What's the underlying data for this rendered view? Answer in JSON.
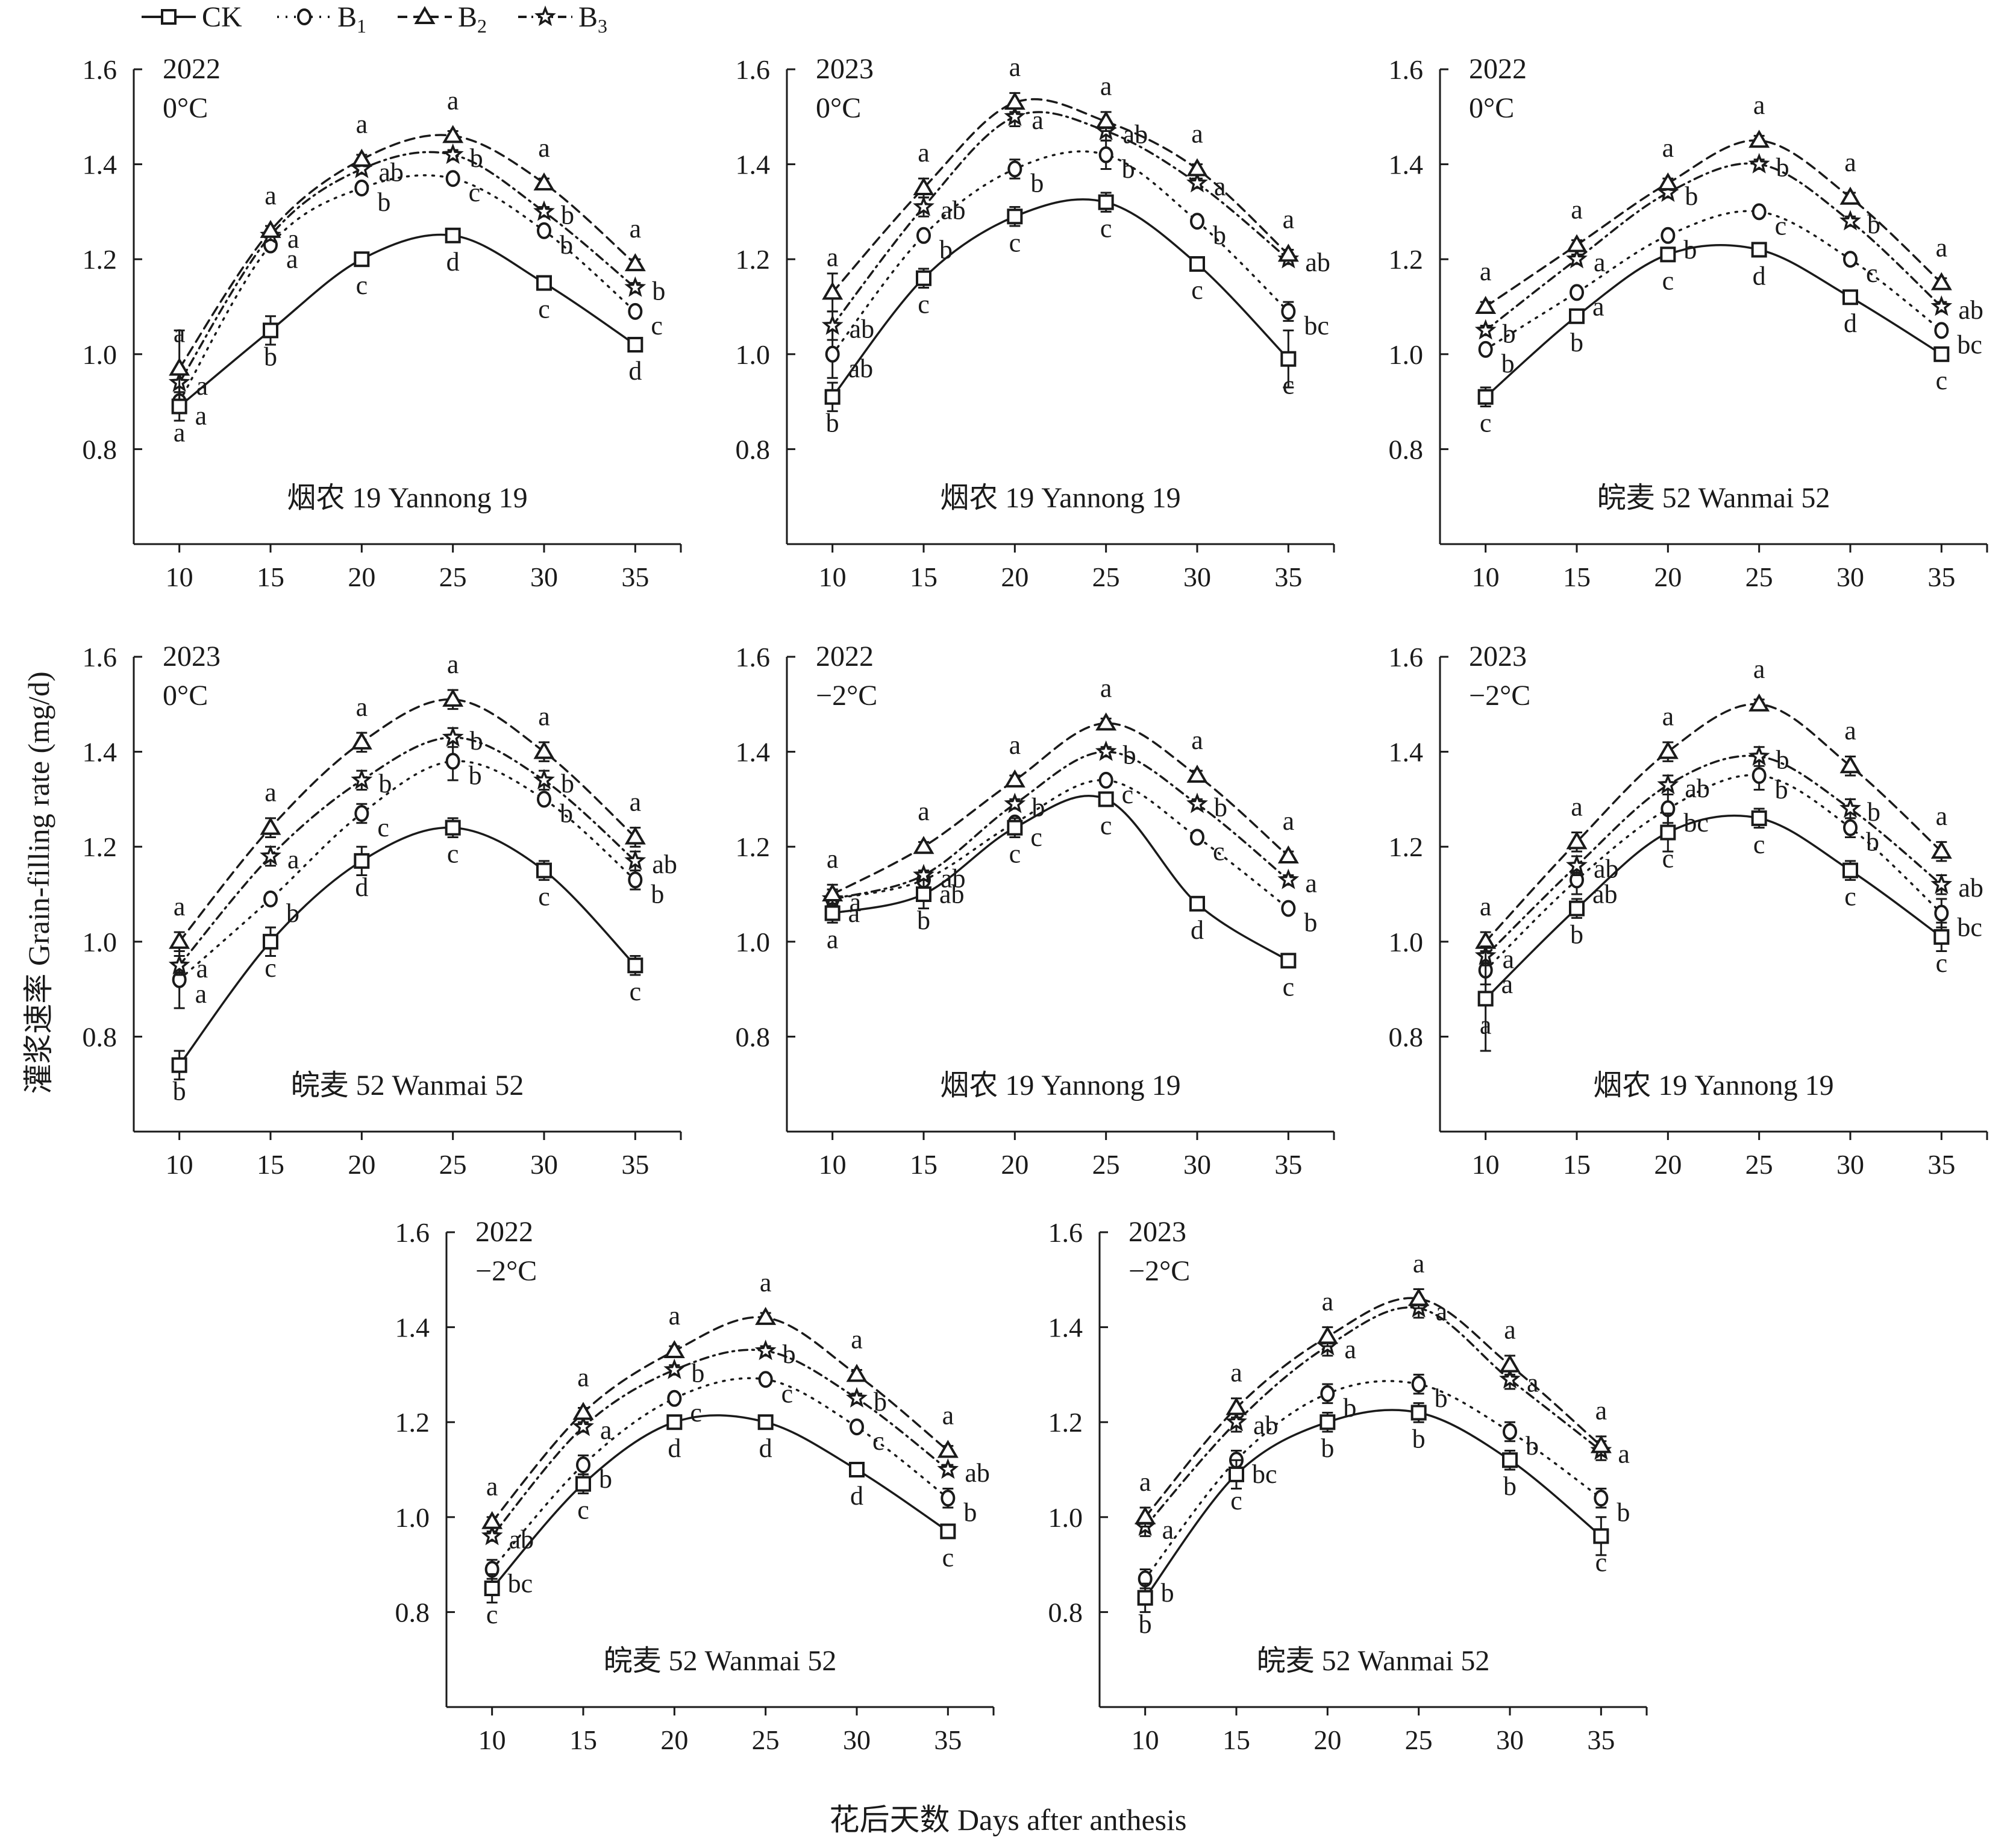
{
  "figure": {
    "ylabel": "灌浆速率 Grain-filling rate (mg/d)",
    "xlabel": "花后天数 Days after anthesis",
    "legend": [
      {
        "key": "CK",
        "label": "CK",
        "sub": "",
        "marker": "square",
        "dash": "solid"
      },
      {
        "key": "B1",
        "label": "B",
        "sub": "1",
        "marker": "circle",
        "dash": "dotted"
      },
      {
        "key": "B2",
        "label": "B",
        "sub": "2",
        "marker": "triangle",
        "dash": "dashed"
      },
      {
        "key": "B3",
        "label": "B",
        "sub": "3",
        "marker": "star",
        "dash": "dashdot"
      }
    ],
    "colors": {
      "ink": "#1a1a1a",
      "background": "#ffffff"
    }
  },
  "chart_data": [
    {
      "type": "line",
      "year": "2022",
      "temp": "0°C",
      "cultivar": "烟农 19 Yannong 19",
      "x": [
        10,
        15,
        20,
        25,
        30,
        35
      ],
      "ylim": [
        0.6,
        1.6
      ],
      "yticks": [
        "0.8",
        "1.0",
        "1.2",
        "1.4",
        "1.6"
      ],
      "xticks": [
        "10",
        "15",
        "20",
        "25",
        "30",
        "35"
      ],
      "series": [
        {
          "key": "CK",
          "values": [
            0.89,
            1.05,
            1.2,
            1.25,
            1.15,
            1.02
          ],
          "err": [
            0.03,
            0.03,
            0.01,
            0.01,
            0.01,
            0.01
          ],
          "letters": [
            "a",
            "b",
            "c",
            "d",
            "c",
            "d"
          ]
        },
        {
          "key": "B1",
          "values": [
            0.9,
            1.23,
            1.35,
            1.37,
            1.26,
            1.09
          ],
          "err": [
            0.02,
            0.01,
            0.01,
            0.01,
            0.01,
            0.01
          ],
          "letters": [
            "a",
            "a",
            "b",
            "c",
            "b",
            "c"
          ]
        },
        {
          "key": "B2",
          "values": [
            0.97,
            1.26,
            1.41,
            1.46,
            1.36,
            1.19
          ],
          "err": [
            0.08,
            0.01,
            0.01,
            0.01,
            0.01,
            0.01
          ],
          "letters": [
            "a",
            "a",
            "a",
            "a",
            "a",
            "a"
          ]
        },
        {
          "key": "B3",
          "values": [
            0.94,
            1.25,
            1.39,
            1.42,
            1.3,
            1.14
          ],
          "err": [
            0.02,
            0.01,
            0.01,
            0.01,
            0.01,
            0.01
          ],
          "letters": [
            "a",
            "a",
            "ab",
            "b",
            "b",
            "b"
          ]
        }
      ]
    },
    {
      "type": "line",
      "year": "2023",
      "temp": "0°C",
      "cultivar": "烟农 19 Yannong 19",
      "x": [
        10,
        15,
        20,
        25,
        30,
        35
      ],
      "ylim": [
        0.6,
        1.6
      ],
      "yticks": [
        "0.8",
        "1.0",
        "1.2",
        "1.4",
        "1.6"
      ],
      "xticks": [
        "10",
        "15",
        "20",
        "25",
        "30",
        "35"
      ],
      "series": [
        {
          "key": "CK",
          "values": [
            0.91,
            1.16,
            1.29,
            1.32,
            1.19,
            0.99
          ],
          "err": [
            0.03,
            0.02,
            0.02,
            0.02,
            0.01,
            0.06
          ],
          "letters": [
            "b",
            "c",
            "c",
            "c",
            "c",
            "c"
          ]
        },
        {
          "key": "B1",
          "values": [
            1.0,
            1.25,
            1.39,
            1.42,
            1.28,
            1.09
          ],
          "err": [
            0.05,
            0.01,
            0.02,
            0.03,
            0.01,
            0.02
          ],
          "letters": [
            "ab",
            "b",
            "b",
            "b",
            "b",
            "bc"
          ]
        },
        {
          "key": "B2",
          "values": [
            1.13,
            1.35,
            1.53,
            1.49,
            1.39,
            1.21
          ],
          "err": [
            0.04,
            0.02,
            0.02,
            0.02,
            0.01,
            0.01
          ],
          "letters": [
            "a",
            "a",
            "a",
            "a",
            "a",
            "a"
          ]
        },
        {
          "key": "B3",
          "values": [
            1.06,
            1.31,
            1.5,
            1.47,
            1.36,
            1.2
          ],
          "err": [
            0.03,
            0.02,
            0.02,
            0.02,
            0.01,
            0.01
          ],
          "letters": [
            "ab",
            "ab",
            "a",
            "ab",
            "a",
            "ab"
          ]
        }
      ]
    },
    {
      "type": "line",
      "year": "2022",
      "temp": "0°C",
      "cultivar": "皖麦 52 Wanmai 52",
      "x": [
        10,
        15,
        20,
        25,
        30,
        35
      ],
      "ylim": [
        0.6,
        1.6
      ],
      "yticks": [
        "0.8",
        "1.0",
        "1.2",
        "1.4",
        "1.6"
      ],
      "xticks": [
        "10",
        "15",
        "20",
        "25",
        "30",
        "35"
      ],
      "series": [
        {
          "key": "CK",
          "values": [
            0.91,
            1.08,
            1.21,
            1.22,
            1.12,
            1.0
          ],
          "err": [
            0.02,
            0.01,
            0.01,
            0.01,
            0.01,
            0.01
          ],
          "letters": [
            "c",
            "b",
            "c",
            "d",
            "d",
            "c"
          ]
        },
        {
          "key": "B1",
          "values": [
            1.01,
            1.13,
            1.25,
            1.3,
            1.2,
            1.05
          ],
          "err": [
            0.01,
            0.01,
            0.01,
            0.01,
            0.01,
            0.01
          ],
          "letters": [
            "b",
            "a",
            "b",
            "c",
            "c",
            "bc"
          ]
        },
        {
          "key": "B2",
          "values": [
            1.1,
            1.23,
            1.36,
            1.45,
            1.33,
            1.15
          ],
          "err": [
            0.01,
            0.01,
            0.01,
            0.01,
            0.01,
            0.01
          ],
          "letters": [
            "a",
            "a",
            "a",
            "a",
            "a",
            "a"
          ]
        },
        {
          "key": "B3",
          "values": [
            1.05,
            1.2,
            1.34,
            1.4,
            1.28,
            1.1
          ],
          "err": [
            0.01,
            0.01,
            0.01,
            0.01,
            0.01,
            0.01
          ],
          "letters": [
            "b",
            "a",
            "b",
            "b",
            "b",
            "ab"
          ]
        }
      ]
    },
    {
      "type": "line",
      "year": "2023",
      "temp": "0°C",
      "cultivar": "皖麦 52 Wanmai 52",
      "x": [
        10,
        15,
        20,
        25,
        30,
        35
      ],
      "ylim": [
        0.6,
        1.6
      ],
      "yticks": [
        "0.8",
        "1.0",
        "1.2",
        "1.4",
        "1.6"
      ],
      "xticks": [
        "10",
        "15",
        "20",
        "25",
        "30",
        "35"
      ],
      "series": [
        {
          "key": "CK",
          "values": [
            0.74,
            1.0,
            1.17,
            1.24,
            1.15,
            0.95
          ],
          "err": [
            0.03,
            0.03,
            0.03,
            0.02,
            0.02,
            0.02
          ],
          "letters": [
            "b",
            "c",
            "d",
            "c",
            "c",
            "c"
          ]
        },
        {
          "key": "B1",
          "values": [
            0.92,
            1.09,
            1.27,
            1.38,
            1.3,
            1.13
          ],
          "err": [
            0.06,
            0.01,
            0.02,
            0.04,
            0.01,
            0.02
          ],
          "letters": [
            "a",
            "b",
            "c",
            "b",
            "b",
            "b"
          ]
        },
        {
          "key": "B2",
          "values": [
            1.0,
            1.24,
            1.42,
            1.51,
            1.4,
            1.22
          ],
          "err": [
            0.02,
            0.02,
            0.02,
            0.02,
            0.02,
            0.02
          ],
          "letters": [
            "a",
            "a",
            "a",
            "a",
            "a",
            "a"
          ]
        },
        {
          "key": "B3",
          "values": [
            0.95,
            1.18,
            1.34,
            1.43,
            1.34,
            1.17
          ],
          "err": [
            0.02,
            0.02,
            0.02,
            0.02,
            0.02,
            0.02
          ],
          "letters": [
            "a",
            "a",
            "b",
            "b",
            "b",
            "ab"
          ]
        }
      ]
    },
    {
      "type": "line",
      "year": "2022",
      "temp": "−2°C",
      "cultivar": "烟农 19 Yannong 19",
      "x": [
        10,
        15,
        20,
        25,
        30,
        35
      ],
      "ylim": [
        0.6,
        1.6
      ],
      "yticks": [
        "0.8",
        "1.0",
        "1.2",
        "1.4",
        "1.6"
      ],
      "xticks": [
        "10",
        "15",
        "20",
        "25",
        "30",
        "35"
      ],
      "series": [
        {
          "key": "CK",
          "values": [
            1.06,
            1.1,
            1.24,
            1.3,
            1.08,
            0.96
          ],
          "err": [
            0.02,
            0.03,
            0.02,
            0.01,
            0.01,
            0.01
          ],
          "letters": [
            "a",
            "b",
            "c",
            "c",
            "d",
            "c"
          ]
        },
        {
          "key": "B1",
          "values": [
            1.09,
            1.13,
            1.25,
            1.34,
            1.22,
            1.07
          ],
          "err": [
            0.02,
            0.01,
            0.01,
            0.01,
            0.01,
            0.01
          ],
          "letters": [
            "a",
            "ab",
            "c",
            "c",
            "c",
            "b"
          ]
        },
        {
          "key": "B2",
          "values": [
            1.1,
            1.2,
            1.34,
            1.46,
            1.35,
            1.18
          ],
          "err": [
            0.02,
            0.01,
            0.01,
            0.01,
            0.01,
            0.01
          ],
          "letters": [
            "a",
            "a",
            "a",
            "a",
            "a",
            "a"
          ]
        },
        {
          "key": "B3",
          "values": [
            1.09,
            1.14,
            1.29,
            1.4,
            1.29,
            1.13
          ],
          "err": [
            0.02,
            0.01,
            0.01,
            0.01,
            0.01,
            0.01
          ],
          "letters": [
            "a",
            "ab",
            "b",
            "b",
            "b",
            "a"
          ]
        }
      ]
    },
    {
      "type": "line",
      "year": "2023",
      "temp": "−2°C",
      "cultivar": "烟农 19 Yannong 19",
      "x": [
        10,
        15,
        20,
        25,
        30,
        35
      ],
      "ylim": [
        0.6,
        1.6
      ],
      "yticks": [
        "0.8",
        "1.0",
        "1.2",
        "1.4",
        "1.6"
      ],
      "xticks": [
        "10",
        "15",
        "20",
        "25",
        "30",
        "35"
      ],
      "series": [
        {
          "key": "CK",
          "values": [
            0.88,
            1.07,
            1.23,
            1.26,
            1.15,
            1.01
          ],
          "err": [
            0.11,
            0.02,
            0.04,
            0.02,
            0.02,
            0.03
          ],
          "letters": [
            "a",
            "b",
            "c",
            "c",
            "c",
            "c"
          ]
        },
        {
          "key": "B1",
          "values": [
            0.94,
            1.13,
            1.28,
            1.35,
            1.24,
            1.06
          ],
          "err": [
            0.03,
            0.03,
            0.03,
            0.03,
            0.02,
            0.03
          ],
          "letters": [
            "a",
            "ab",
            "bc",
            "b",
            "b",
            "bc"
          ]
        },
        {
          "key": "B2",
          "values": [
            1.0,
            1.21,
            1.4,
            1.5,
            1.37,
            1.19
          ],
          "err": [
            0.02,
            0.02,
            0.02,
            0.01,
            0.02,
            0.02
          ],
          "letters": [
            "a",
            "a",
            "a",
            "a",
            "a",
            "a"
          ]
        },
        {
          "key": "B3",
          "values": [
            0.97,
            1.16,
            1.33,
            1.39,
            1.28,
            1.12
          ],
          "err": [
            0.02,
            0.02,
            0.02,
            0.02,
            0.02,
            0.02
          ],
          "letters": [
            "a",
            "ab",
            "ab",
            "b",
            "b",
            "ab"
          ]
        }
      ]
    },
    {
      "type": "line",
      "year": "2022",
      "temp": "−2°C",
      "cultivar": "皖麦 52 Wanmai 52",
      "x": [
        10,
        15,
        20,
        25,
        30,
        35
      ],
      "ylim": [
        0.6,
        1.6
      ],
      "yticks": [
        "0.8",
        "1.0",
        "1.2",
        "1.4",
        "1.6"
      ],
      "xticks": [
        "10",
        "15",
        "20",
        "25",
        "30",
        "35"
      ],
      "series": [
        {
          "key": "CK",
          "values": [
            0.85,
            1.07,
            1.2,
            1.2,
            1.1,
            0.97
          ],
          "err": [
            0.03,
            0.02,
            0.01,
            0.01,
            0.01,
            0.01
          ],
          "letters": [
            "c",
            "c",
            "d",
            "d",
            "d",
            "c"
          ]
        },
        {
          "key": "B1",
          "values": [
            0.89,
            1.11,
            1.25,
            1.29,
            1.19,
            1.04
          ],
          "err": [
            0.02,
            0.02,
            0.01,
            0.01,
            0.01,
            0.02
          ],
          "letters": [
            "bc",
            "b",
            "c",
            "c",
            "c",
            "b"
          ]
        },
        {
          "key": "B2",
          "values": [
            0.99,
            1.22,
            1.35,
            1.42,
            1.3,
            1.14
          ],
          "err": [
            0.01,
            0.01,
            0.01,
            0.01,
            0.01,
            0.01
          ],
          "letters": [
            "a",
            "a",
            "a",
            "a",
            "a",
            "a"
          ]
        },
        {
          "key": "B3",
          "values": [
            0.96,
            1.19,
            1.31,
            1.35,
            1.25,
            1.1
          ],
          "err": [
            0.01,
            0.01,
            0.01,
            0.01,
            0.01,
            0.01
          ],
          "letters": [
            "ab",
            "a",
            "b",
            "b",
            "b",
            "ab"
          ]
        }
      ]
    },
    {
      "type": "line",
      "year": "2023",
      "temp": "−2°C",
      "cultivar": "皖麦 52 Wanmai 52",
      "x": [
        10,
        15,
        20,
        25,
        30,
        35
      ],
      "ylim": [
        0.6,
        1.6
      ],
      "yticks": [
        "0.8",
        "1.0",
        "1.2",
        "1.4",
        "1.6"
      ],
      "xticks": [
        "10",
        "15",
        "20",
        "25",
        "30",
        "35"
      ],
      "series": [
        {
          "key": "CK",
          "values": [
            0.83,
            1.09,
            1.2,
            1.22,
            1.12,
            0.96
          ],
          "err": [
            0.03,
            0.03,
            0.02,
            0.02,
            0.02,
            0.04
          ],
          "letters": [
            "b",
            "c",
            "b",
            "b",
            "b",
            "c"
          ]
        },
        {
          "key": "B1",
          "values": [
            0.87,
            1.12,
            1.26,
            1.28,
            1.18,
            1.04
          ],
          "err": [
            0.02,
            0.02,
            0.02,
            0.02,
            0.02,
            0.02
          ],
          "letters": [
            "b",
            "bc",
            "b",
            "b",
            "b",
            "b"
          ]
        },
        {
          "key": "B2",
          "values": [
            1.0,
            1.23,
            1.38,
            1.46,
            1.32,
            1.15
          ],
          "err": [
            0.02,
            0.02,
            0.02,
            0.02,
            0.02,
            0.02
          ],
          "letters": [
            "a",
            "a",
            "a",
            "a",
            "a",
            "a"
          ]
        },
        {
          "key": "B3",
          "values": [
            0.98,
            1.2,
            1.36,
            1.44,
            1.29,
            1.14
          ],
          "err": [
            0.02,
            0.02,
            0.02,
            0.02,
            0.02,
            0.02
          ],
          "letters": [
            "a",
            "ab",
            "a",
            "a",
            "a",
            "a"
          ]
        }
      ]
    }
  ]
}
